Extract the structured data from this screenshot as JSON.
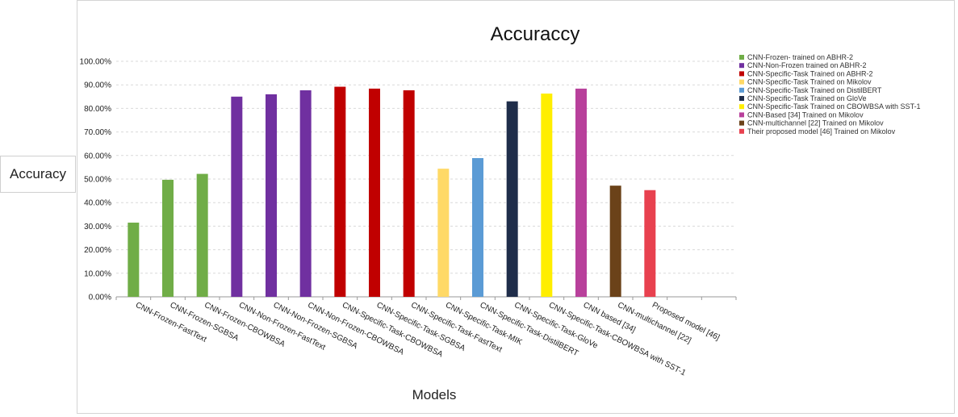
{
  "chart_data": {
    "type": "bar",
    "title": "Accuraccy",
    "xlabel": "Models",
    "ylabel": "Accuracy",
    "ylim": [
      0,
      100
    ],
    "yticks": [
      "0.00%",
      "10.00%",
      "20.00%",
      "30.00%",
      "40.00%",
      "50.00%",
      "60.00%",
      "70.00%",
      "80.00%",
      "90.00%",
      "100.00%"
    ],
    "grid": true,
    "legend_position": "right",
    "categories": [
      "CNN-Frozen-FastText",
      "CNN-Frozen-SGBSA",
      "CNN-Frozen-CBOWBSA",
      "CNN-Non-Frozen-FastText",
      "CNN-Non-Frozen-SGBSA",
      "CNN-Non-Frozen-CBOWBSA",
      "CNN-Specific-Task-CBOWBSA",
      "CNN-Specific-Task-SGBSA",
      "CNN-Specific-Task-FastText",
      "CNN-Specific-Task-MIK",
      "CNN-Specific-Task-DistilBERT",
      "CNN-Specific-Task-GloVe",
      "CNN-Specific-Task-CBOWBSA with SST-1",
      "CNN based [34]",
      "CNN-multichannel [22]",
      "Proposed model [46]",
      "",
      ""
    ],
    "values": [
      31.5,
      49.7,
      52.2,
      85.0,
      86.0,
      87.7,
      89.2,
      88.4,
      87.7,
      54.4,
      58.9,
      83.0,
      86.3,
      88.4,
      47.2,
      45.3,
      null,
      null
    ],
    "bar_colors": [
      "#70ad47",
      "#70ad47",
      "#70ad47",
      "#7030a0",
      "#7030a0",
      "#7030a0",
      "#c00000",
      "#c00000",
      "#c00000",
      "#ffd966",
      "#5b9bd5",
      "#1f2d4a",
      "#ffee00",
      "#b8409b",
      "#6b4219",
      "#e8414f",
      "#ffffff",
      "#ffffff"
    ],
    "legend": [
      {
        "label": "CNN-Frozen- trained on ABHR-2",
        "color": "#70ad47"
      },
      {
        "label": "CNN-Non-Frozen trained on ABHR-2",
        "color": "#7030a0"
      },
      {
        "label": "CNN-Specific-Task Trained on ABHR-2",
        "color": "#c00000"
      },
      {
        "label": "CNN-Specific-Task Trained on Mikolov",
        "color": "#ffd966"
      },
      {
        "label": "CNN-Specific-Task Trained on DistilBERT",
        "color": "#5b9bd5"
      },
      {
        "label": "CNN-Specific-Task Trained on GloVe",
        "color": "#1f2d4a"
      },
      {
        "label": "CNN-Specific-Task Trained on CBOWBSA with SST-1",
        "color": "#ffee00"
      },
      {
        "label": "CNN-Based [34] Trained on Mikolov",
        "color": "#b8409b"
      },
      {
        "label": "CNN-multichannel [22] Trained on Mikolov",
        "color": "#6b4219"
      },
      {
        "label": "Their proposed model [46] Trained on Mikolov",
        "color": "#e8414f"
      }
    ]
  }
}
